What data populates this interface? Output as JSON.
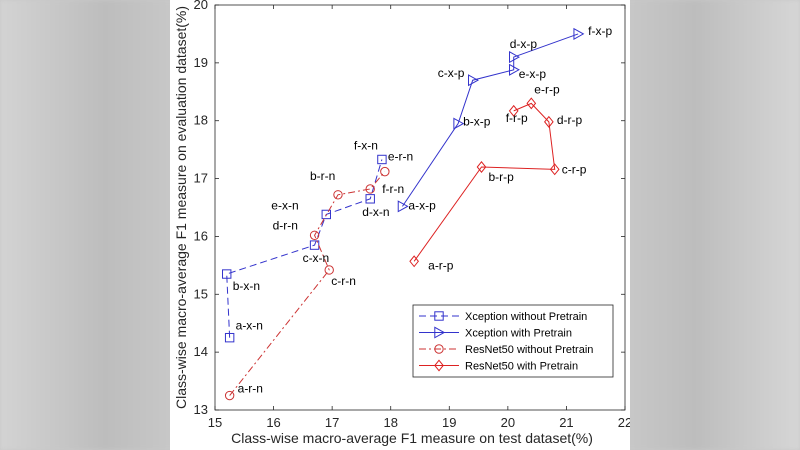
{
  "chart_data": {
    "type": "line",
    "xlabel": "Class-wise macro-average F1 measure on test dataset(%)",
    "ylabel": "Class-wise macro-average F1 measure on evaluation dataset(%)",
    "xlim": [
      15,
      22
    ],
    "ylim": [
      13,
      20
    ],
    "xticks": [
      15,
      16,
      17,
      18,
      19,
      20,
      21,
      22
    ],
    "yticks": [
      13,
      14,
      15,
      16,
      17,
      18,
      19,
      20
    ],
    "legend_position": "bottom-right",
    "series": [
      {
        "name": "Xception without Pretrain",
        "color": "#3333cc",
        "line_style": "dashed",
        "marker": "square",
        "points": [
          {
            "label": "a-x-n",
            "x": 15.25,
            "y": 14.25
          },
          {
            "label": "b-x-n",
            "x": 15.2,
            "y": 15.35
          },
          {
            "label": "c-x-n",
            "x": 16.7,
            "y": 15.85
          },
          {
            "label": "e-x-n",
            "x": 16.9,
            "y": 16.38
          },
          {
            "label": "d-x-n",
            "x": 17.65,
            "y": 16.65
          },
          {
            "label": "f-x-n",
            "x": 17.85,
            "y": 17.33
          }
        ]
      },
      {
        "name": "Xception with Pretrain",
        "color": "#3333cc",
        "line_style": "solid",
        "marker": "triangle-right",
        "points": [
          {
            "label": "a-x-p",
            "x": 18.2,
            "y": 16.52
          },
          {
            "label": "b-x-p",
            "x": 19.15,
            "y": 17.95
          },
          {
            "label": "c-x-p",
            "x": 19.4,
            "y": 18.7
          },
          {
            "label": "e-x-p",
            "x": 20.1,
            "y": 18.88
          },
          {
            "label": "d-x-p",
            "x": 20.1,
            "y": 19.1
          },
          {
            "label": "f-x-p",
            "x": 21.2,
            "y": 19.5
          }
        ]
      },
      {
        "name": "ResNet50 without Pretrain",
        "color": "#cc3333",
        "line_style": "dash-dot",
        "marker": "circle",
        "points": [
          {
            "label": "a-r-n",
            "x": 15.25,
            "y": 13.25
          },
          {
            "label": "c-r-n",
            "x": 16.95,
            "y": 15.42
          },
          {
            "label": "d-r-n",
            "x": 16.7,
            "y": 16.02
          },
          {
            "label": "b-r-n",
            "x": 17.1,
            "y": 16.72
          },
          {
            "label": "f-r-n",
            "x": 17.65,
            "y": 16.82
          },
          {
            "label": "e-r-n",
            "x": 17.9,
            "y": 17.12
          }
        ]
      },
      {
        "name": "ResNet50 with Pretrain",
        "color": "#dd2222",
        "line_style": "solid",
        "marker": "diamond",
        "points": [
          {
            "label": "a-r-p",
            "x": 18.4,
            "y": 15.57
          },
          {
            "label": "b-r-p",
            "x": 19.55,
            "y": 17.2
          },
          {
            "label": "c-r-p",
            "x": 20.8,
            "y": 17.16
          },
          {
            "label": "d-r-p",
            "x": 20.7,
            "y": 17.98
          },
          {
            "label": "e-r-p",
            "x": 20.4,
            "y": 18.3
          },
          {
            "label": "f-r-p",
            "x": 20.1,
            "y": 18.17
          }
        ]
      }
    ]
  }
}
